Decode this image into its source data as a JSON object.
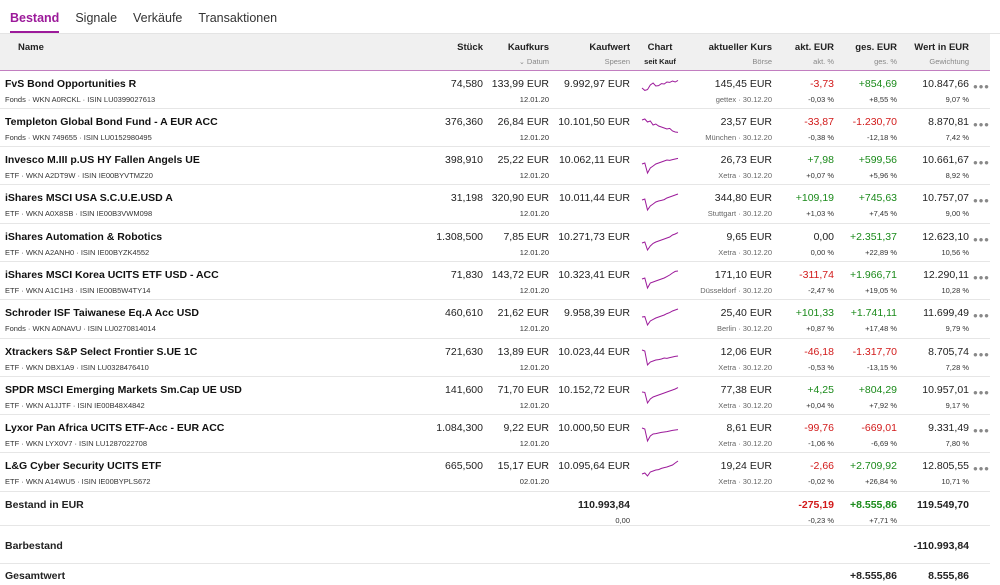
{
  "tabs": [
    "Bestand",
    "Signale",
    "Verkäufe",
    "Transaktionen"
  ],
  "columns": {
    "name": "Name",
    "stueck": "Stück",
    "kaufkurs": "Kaufkurs",
    "kaufkurs_sub": "Datum",
    "kaufwert": "Kaufwert",
    "kaufwert_sub": "Spesen",
    "chart": "Chart",
    "chart_sub": "seit Kauf",
    "kurs": "aktueller Kurs",
    "kurs_sub": "Börse",
    "akt": "akt. EUR",
    "akt_sub": "akt. %",
    "ges": "ges. EUR",
    "ges_sub": "ges. %",
    "wert": "Wert in EUR",
    "wert_sub": "Gewichtung"
  },
  "colors": {
    "accent": "#9c1a9a",
    "positive": "#1a8a1a",
    "negative": "#d21a1a"
  },
  "positions": [
    {
      "name": "FvS Bond Opportunities R",
      "meta": "Fonds · WKN A0RCKL · ISIN LU0399027613",
      "stueck": "74,580",
      "kaufkurs": "133,99 EUR",
      "datum": "12.01.20",
      "kaufwert": "9.992,97 EUR",
      "spesen": "",
      "kurs": "145,45 EUR",
      "boerse": "gettex · 30.12.20",
      "akt_eur": "-3,73",
      "akt_pct": "-0,03 %",
      "ges_eur": "+854,69",
      "ges_pct": "+8,55 %",
      "wert": "10.847,66",
      "gewichtung": "9,07 %",
      "spark": [
        0.5,
        0.62,
        0.58,
        0.35,
        0.25,
        0.4,
        0.38,
        0.28,
        0.3,
        0.2,
        0.22,
        0.15,
        0.2,
        0.12
      ]
    },
    {
      "name": "Templeton Global Bond Fund - A EUR ACC",
      "meta": "Fonds · WKN 749655 · ISIN LU0152980495",
      "stueck": "376,360",
      "kaufkurs": "26,84 EUR",
      "datum": "12.01.20",
      "kaufwert": "10.101,50 EUR",
      "spesen": "",
      "kurs": "23,57 EUR",
      "boerse": "München · 30.12.20",
      "akt_eur": "-33,87",
      "akt_pct": "-0,38 %",
      "ges_eur": "-1.230,70",
      "ges_pct": "-12,18 %",
      "wert": "8.870,81",
      "gewichtung": "7,42 %",
      "spark": [
        0.2,
        0.15,
        0.3,
        0.25,
        0.45,
        0.4,
        0.5,
        0.55,
        0.6,
        0.65,
        0.62,
        0.75,
        0.8,
        0.82
      ]
    },
    {
      "name": "Invesco M.III p.US HY Fallen Angels UE",
      "meta": "ETF · WKN A2DT9W · ISIN IE00BYVTMZ20",
      "stueck": "398,910",
      "kaufkurs": "25,22 EUR",
      "datum": "12.01.20",
      "kaufwert": "10.062,11 EUR",
      "spesen": "",
      "kurs": "26,73 EUR",
      "boerse": "Xetra · 30.12.20",
      "akt_eur": "+7,98",
      "akt_pct": "+0,07 %",
      "ges_eur": "+599,56",
      "ges_pct": "+5,96 %",
      "wert": "10.661,67",
      "gewichtung": "8,92 %",
      "spark": [
        0.5,
        0.45,
        0.95,
        0.7,
        0.6,
        0.5,
        0.45,
        0.4,
        0.35,
        0.3,
        0.32,
        0.28,
        0.25,
        0.22
      ]
    },
    {
      "name": "iShares MSCI USA S.C.U.E.USD A",
      "meta": "ETF · WKN A0X8SB · ISIN IE00B3VWM098",
      "stueck": "31,198",
      "kaufkurs": "320,90 EUR",
      "datum": "12.01.20",
      "kaufwert": "10.011,44 EUR",
      "spesen": "",
      "kurs": "344,80 EUR",
      "boerse": "Stuttgart · 30.12.20",
      "akt_eur": "+109,19",
      "akt_pct": "+1,03 %",
      "ges_eur": "+745,63",
      "ges_pct": "+7,45 %",
      "wert": "10.757,07",
      "gewichtung": "9,00 %",
      "spark": [
        0.4,
        0.35,
        0.9,
        0.7,
        0.6,
        0.5,
        0.45,
        0.42,
        0.38,
        0.3,
        0.25,
        0.2,
        0.15,
        0.1
      ]
    },
    {
      "name": "iShares Automation & Robotics",
      "meta": "ETF · WKN A2ANH0 · ISIN IE00BYZK4552",
      "stueck": "1.308,500",
      "kaufkurs": "7,85 EUR",
      "datum": "12.01.20",
      "kaufwert": "10.271,73 EUR",
      "spesen": "",
      "kurs": "9,65 EUR",
      "boerse": "Xetra · 30.12.20",
      "akt_eur": "0,00",
      "akt_pct": "0,00 %",
      "ges_eur": "+2.351,37",
      "ges_pct": "+22,89 %",
      "wert": "12.623,10",
      "gewichtung": "10,56 %",
      "spark": [
        0.6,
        0.55,
        0.95,
        0.75,
        0.62,
        0.55,
        0.5,
        0.45,
        0.4,
        0.35,
        0.3,
        0.2,
        0.15,
        0.08
      ]
    },
    {
      "name": "iShares MSCI Korea UCITS ETF USD - ACC",
      "meta": "ETF · WKN A1C1H3 · ISIN IE00B5W4TY14",
      "stueck": "71,830",
      "kaufkurs": "143,72 EUR",
      "datum": "12.01.20",
      "kaufwert": "10.323,41 EUR",
      "spesen": "",
      "kurs": "171,10 EUR",
      "boerse": "Düsseldorf · 30.12.20",
      "akt_eur": "-311,74",
      "akt_pct": "-2,47 %",
      "ges_eur": "+1.966,71",
      "ges_pct": "+19,05 %",
      "wert": "12.290,11",
      "gewichtung": "10,28 %",
      "spark": [
        0.5,
        0.45,
        0.95,
        0.7,
        0.65,
        0.6,
        0.55,
        0.5,
        0.45,
        0.38,
        0.3,
        0.2,
        0.12,
        0.1
      ]
    },
    {
      "name": "Schroder ISF Taiwanese Eq.A Acc USD",
      "meta": "Fonds · WKN A0NAVU · ISIN LU0270814014",
      "stueck": "460,610",
      "kaufkurs": "21,62 EUR",
      "datum": "12.01.20",
      "kaufwert": "9.958,39 EUR",
      "spesen": "",
      "kurs": "25,40 EUR",
      "boerse": "Berlin · 30.12.20",
      "akt_eur": "+101,33",
      "akt_pct": "+0,87 %",
      "ges_eur": "+1.741,11",
      "ges_pct": "+17,48 %",
      "wert": "11.699,49",
      "gewichtung": "9,79 %",
      "spark": [
        0.5,
        0.48,
        0.9,
        0.7,
        0.62,
        0.55,
        0.5,
        0.45,
        0.4,
        0.33,
        0.28,
        0.2,
        0.15,
        0.1
      ]
    },
    {
      "name": "Xtrackers S&P Select Frontier S.UE 1C",
      "meta": "ETF · WKN DBX1A9 · ISIN LU0328476410",
      "stueck": "721,630",
      "kaufkurs": "13,89 EUR",
      "datum": "12.01.20",
      "kaufwert": "10.023,44 EUR",
      "spesen": "",
      "kurs": "12,06 EUR",
      "boerse": "Xetra · 30.12.20",
      "akt_eur": "-46,18",
      "akt_pct": "-0,53 %",
      "ges_eur": "-1.317,70",
      "ges_pct": "-13,15 %",
      "wert": "8.705,74",
      "gewichtung": "7,28 %",
      "spark": [
        0.2,
        0.25,
        0.95,
        0.8,
        0.75,
        0.7,
        0.68,
        0.65,
        0.6,
        0.62,
        0.58,
        0.55,
        0.52,
        0.5
      ]
    },
    {
      "name": "SPDR MSCI Emerging Markets Sm.Cap UE USD",
      "meta": "ETF · WKN A1JJTF · ISIN IE00B48X4842",
      "stueck": "141,600",
      "kaufkurs": "71,70 EUR",
      "datum": "12.01.20",
      "kaufwert": "10.152,72 EUR",
      "spesen": "",
      "kurs": "77,38 EUR",
      "boerse": "Xetra · 30.12.20",
      "akt_eur": "+4,25",
      "akt_pct": "+0,04 %",
      "ges_eur": "+804,29",
      "ges_pct": "+7,92 %",
      "wert": "10.957,01",
      "gewichtung": "9,17 %",
      "spark": [
        0.4,
        0.42,
        0.95,
        0.75,
        0.65,
        0.6,
        0.55,
        0.5,
        0.45,
        0.4,
        0.35,
        0.3,
        0.25,
        0.18
      ]
    },
    {
      "name": "Lyxor Pan Africa UCITS ETF-Acc - EUR ACC",
      "meta": "ETF · WKN LYX0V7 · ISIN LU1287022708",
      "stueck": "1.084,300",
      "kaufkurs": "9,22 EUR",
      "datum": "12.01.20",
      "kaufwert": "10.000,50 EUR",
      "spesen": "",
      "kurs": "8,61 EUR",
      "boerse": "Xetra · 30.12.20",
      "akt_eur": "-99,76",
      "akt_pct": "-1,06 %",
      "ges_eur": "-669,01",
      "ges_pct": "-6,69 %",
      "wert": "9.331,49",
      "gewichtung": "7,80 %",
      "spark": [
        0.3,
        0.35,
        0.95,
        0.7,
        0.6,
        0.58,
        0.55,
        0.52,
        0.5,
        0.48,
        0.45,
        0.42,
        0.4,
        0.38
      ]
    },
    {
      "name": "L&G Cyber Security UCITS ETF",
      "meta": "ETF · WKN A14WU5 · ISIN IE00BYPLS672",
      "stueck": "665,500",
      "kaufkurs": "15,17 EUR",
      "datum": "02.01.20",
      "kaufwert": "10.095,64 EUR",
      "spesen": "",
      "kurs": "19,24 EUR",
      "boerse": "Xetra · 30.12.20",
      "akt_eur": "-2,66",
      "akt_pct": "-0,02 %",
      "ges_eur": "+2.709,92",
      "ges_pct": "+26,84 %",
      "wert": "12.805,55",
      "gewichtung": "10,71 %",
      "spark": [
        0.7,
        0.65,
        0.8,
        0.6,
        0.55,
        0.5,
        0.48,
        0.42,
        0.38,
        0.35,
        0.3,
        0.25,
        0.15,
        0.05
      ]
    }
  ],
  "total": {
    "label": "Bestand in EUR",
    "kaufwert": "110.993,84",
    "spesen": "0,00",
    "akt_eur": "-275,19",
    "akt_pct": "-0,23 %",
    "ges_eur": "+8.555,86",
    "ges_pct": "+7,71 %",
    "wert": "119.549,70"
  },
  "barbestand": {
    "label": "Barbestand",
    "wert": "-110.993,84"
  },
  "gesamtwert": {
    "label": "Gesamtwert",
    "ges_eur": "+8.555,86",
    "wert": "8.555,86"
  },
  "more_label": "•••"
}
